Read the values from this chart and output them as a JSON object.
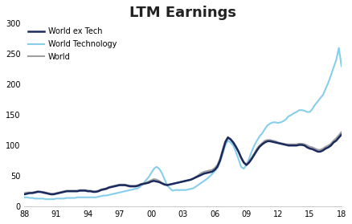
{
  "title": "LTM Earnings",
  "title_fontsize": 13,
  "x_tick_labels": [
    "88",
    "91",
    "94",
    "97",
    "00",
    "03",
    "06",
    "09",
    "12",
    "15",
    "18"
  ],
  "ylim": [
    0,
    300
  ],
  "y_ticks": [
    0,
    50,
    100,
    150,
    200,
    250,
    300
  ],
  "legend": [
    "World ex Tech",
    "World Technology",
    "World"
  ],
  "colors": {
    "world_ex_tech": "#1a2a5e",
    "world_tech": "#87ceeb",
    "world": "#a0a0a0"
  },
  "world_ex_tech_y": [
    20,
    21,
    22,
    22,
    23,
    24,
    24,
    23,
    22,
    21,
    20,
    20,
    21,
    22,
    23,
    24,
    25,
    25,
    25,
    25,
    25,
    26,
    26,
    26,
    25,
    25,
    24,
    24,
    25,
    27,
    28,
    29,
    31,
    32,
    33,
    34,
    35,
    35,
    35,
    34,
    33,
    33,
    33,
    34,
    36,
    37,
    38,
    39,
    41,
    42,
    41,
    40,
    38,
    36,
    35,
    36,
    37,
    38,
    39,
    40,
    41,
    42,
    43,
    44,
    46,
    48,
    50,
    52,
    54,
    55,
    56,
    57,
    60,
    65,
    75,
    90,
    105,
    113,
    110,
    105,
    98,
    90,
    80,
    72,
    68,
    72,
    78,
    85,
    92,
    98,
    102,
    105,
    107,
    107,
    106,
    105,
    104,
    103,
    102,
    101,
    100,
    100,
    100,
    100,
    101,
    101,
    100,
    97,
    95,
    94,
    92,
    90,
    90,
    92,
    95,
    97,
    100,
    105,
    108,
    113,
    118
  ],
  "world_tech_y": [
    15,
    15,
    14,
    14,
    13,
    13,
    13,
    13,
    12,
    12,
    12,
    12,
    13,
    13,
    13,
    13,
    14,
    14,
    14,
    14,
    15,
    15,
    15,
    15,
    15,
    15,
    15,
    15,
    16,
    17,
    18,
    18,
    19,
    20,
    21,
    22,
    23,
    24,
    25,
    26,
    27,
    28,
    29,
    30,
    33,
    38,
    43,
    48,
    55,
    62,
    65,
    62,
    55,
    45,
    35,
    30,
    26,
    27,
    27,
    27,
    27,
    27,
    28,
    29,
    30,
    33,
    36,
    39,
    42,
    45,
    49,
    53,
    58,
    63,
    73,
    86,
    100,
    108,
    105,
    100,
    90,
    78,
    65,
    62,
    68,
    78,
    90,
    100,
    108,
    115,
    120,
    127,
    133,
    136,
    138,
    138,
    137,
    138,
    140,
    143,
    148,
    150,
    153,
    155,
    158,
    158,
    157,
    155,
    155,
    160,
    167,
    172,
    178,
    183,
    193,
    203,
    215,
    228,
    240,
    260,
    230
  ],
  "world_y": [
    22,
    23,
    23,
    23,
    24,
    25,
    24,
    24,
    23,
    22,
    21,
    21,
    22,
    23,
    24,
    25,
    26,
    26,
    26,
    26,
    26,
    27,
    27,
    27,
    26,
    26,
    25,
    25,
    26,
    28,
    29,
    30,
    32,
    33,
    34,
    35,
    36,
    36,
    36,
    35,
    34,
    34,
    34,
    35,
    37,
    38,
    39,
    41,
    43,
    45,
    44,
    42,
    39,
    37,
    36,
    36,
    37,
    38,
    39,
    40,
    41,
    42,
    43,
    44,
    46,
    49,
    52,
    55,
    57,
    58,
    59,
    60,
    63,
    68,
    78,
    93,
    107,
    114,
    111,
    106,
    99,
    91,
    81,
    73,
    69,
    74,
    80,
    87,
    95,
    100,
    104,
    108,
    109,
    109,
    108,
    107,
    105,
    104,
    103,
    102,
    102,
    102,
    102,
    102,
    103,
    103,
    102,
    100,
    98,
    97,
    95,
    93,
    93,
    95,
    98,
    100,
    103,
    108,
    112,
    117,
    122
  ],
  "background_color": "#ffffff",
  "spine_color": "#cccccc",
  "linewidth_dark": 1.8,
  "linewidth_light": 1.5
}
